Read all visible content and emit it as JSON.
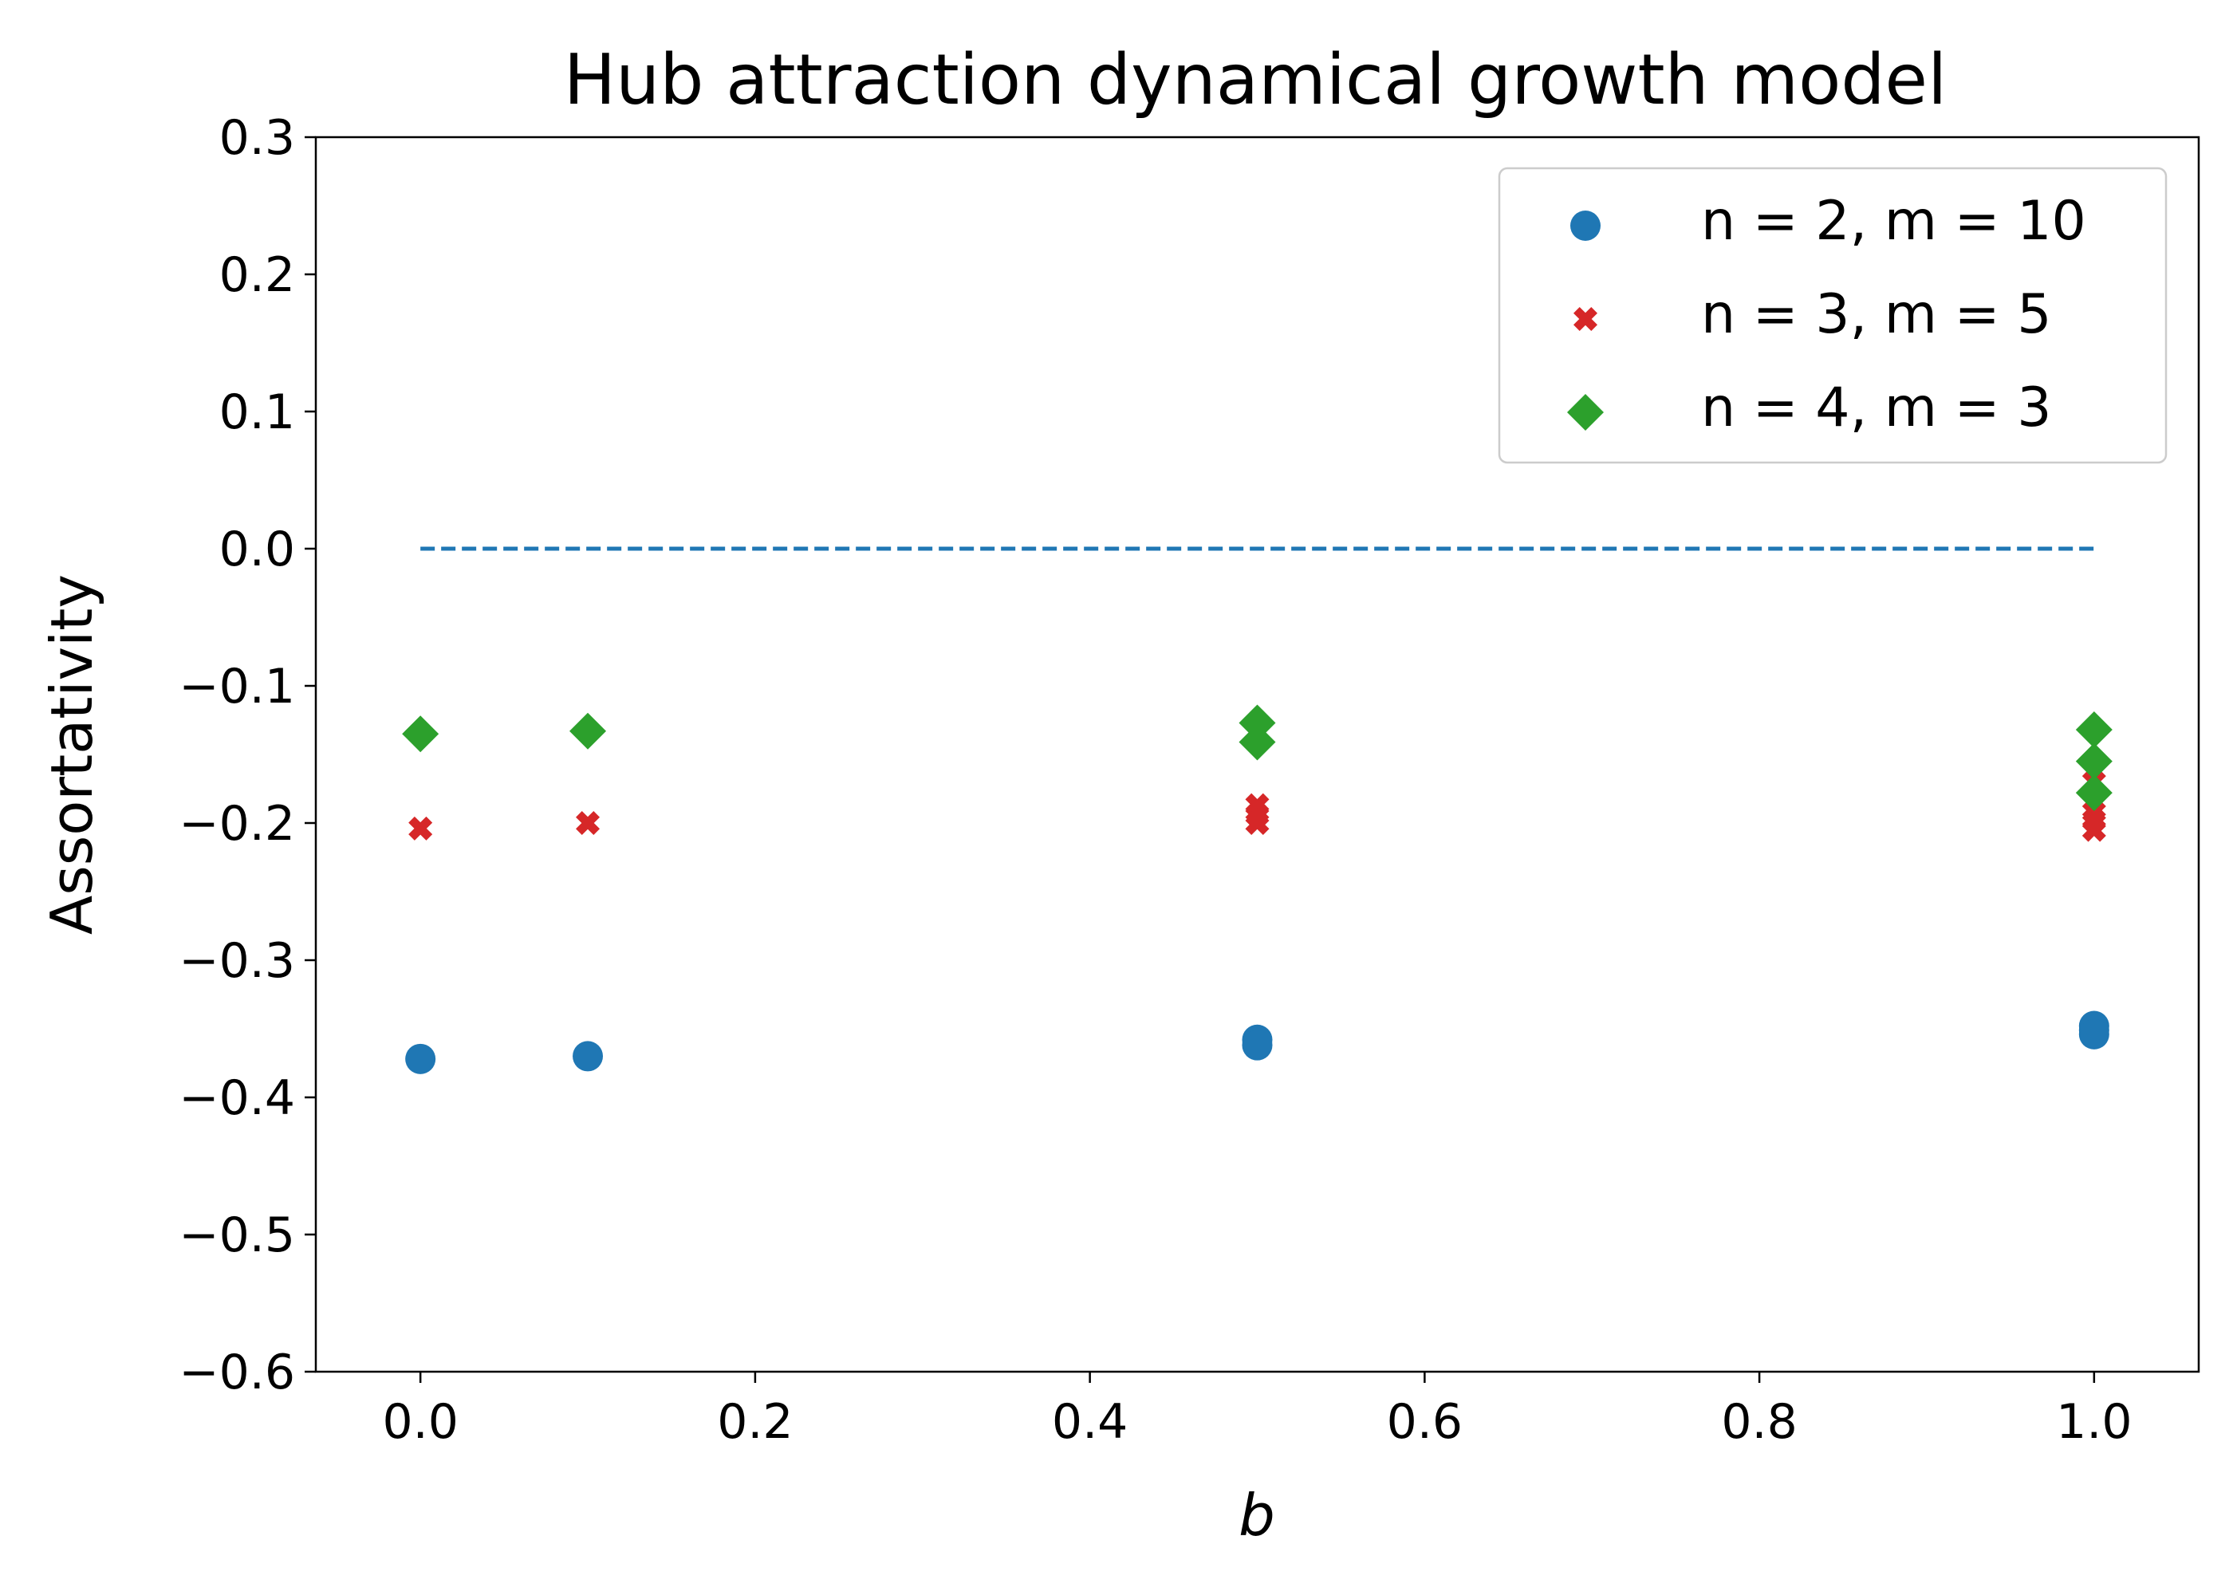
{
  "chart_data": {
    "type": "scatter",
    "title": "Hub attraction dynamical growth model",
    "xlabel": "b",
    "ylabel": "Assortativity",
    "xlim": [
      -0.0625,
      1.0625
    ],
    "ylim": [
      -0.6,
      0.3
    ],
    "xticks": [
      0.0,
      0.2,
      0.4,
      0.6,
      0.8,
      1.0
    ],
    "xtick_labels": [
      "0.0",
      "0.2",
      "0.4",
      "0.6",
      "0.8",
      "1.0"
    ],
    "yticks": [
      0.3,
      0.2,
      0.1,
      0.0,
      -0.1,
      -0.2,
      -0.3,
      -0.4,
      -0.5,
      -0.6
    ],
    "ytick_labels": [
      "0.3",
      "0.2",
      "0.1",
      "0.0",
      "−0.1",
      "−0.2",
      "−0.3",
      "−0.4",
      "−0.5",
      "−0.6"
    ],
    "grid": false,
    "legend_position": "top-right",
    "reference_line": {
      "y": 0.0,
      "x_from": 0.0,
      "x_to": 1.0,
      "style": "dashed",
      "color": "#1f77b4"
    },
    "series": [
      {
        "name": "n = 2, m = 10",
        "marker": "circle",
        "color": "#1f77b4",
        "points": [
          {
            "x": 0.0,
            "y": -0.372
          },
          {
            "x": 0.1,
            "y": -0.37
          },
          {
            "x": 0.5,
            "y": -0.358
          },
          {
            "x": 0.5,
            "y": -0.362
          },
          {
            "x": 1.0,
            "y": -0.348
          },
          {
            "x": 1.0,
            "y": -0.351
          },
          {
            "x": 1.0,
            "y": -0.354
          }
        ]
      },
      {
        "name": "n = 3, m = 5",
        "marker": "x",
        "color": "#d62728",
        "points": [
          {
            "x": 0.0,
            "y": -0.204
          },
          {
            "x": 0.1,
            "y": -0.2
          },
          {
            "x": 0.5,
            "y": -0.187
          },
          {
            "x": 0.5,
            "y": -0.194
          },
          {
            "x": 0.5,
            "y": -0.2
          },
          {
            "x": 1.0,
            "y": -0.17
          },
          {
            "x": 1.0,
            "y": -0.192
          },
          {
            "x": 1.0,
            "y": -0.198
          },
          {
            "x": 1.0,
            "y": -0.205
          }
        ]
      },
      {
        "name": "n = 4, m = 3",
        "marker": "diamond",
        "color": "#2ca02c",
        "points": [
          {
            "x": 0.0,
            "y": -0.135
          },
          {
            "x": 0.1,
            "y": -0.133
          },
          {
            "x": 0.5,
            "y": -0.127
          },
          {
            "x": 0.5,
            "y": -0.141
          },
          {
            "x": 1.0,
            "y": -0.132
          },
          {
            "x": 1.0,
            "y": -0.155
          },
          {
            "x": 1.0,
            "y": -0.178
          }
        ]
      }
    ]
  }
}
